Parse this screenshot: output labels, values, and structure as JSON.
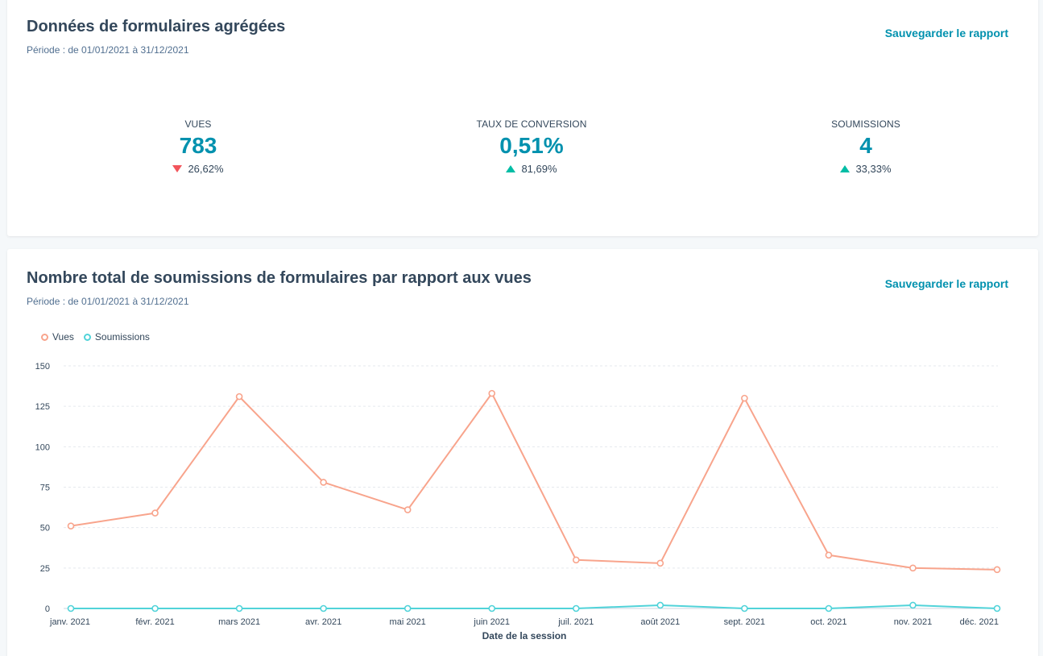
{
  "summary": {
    "title": "Données de formulaires agrégées",
    "period": "Période : de 01/01/2021 à 31/12/2021",
    "save_label": "Sauvegarder le rapport",
    "kpis": [
      {
        "label": "VUES",
        "value": "783",
        "change": "26,62%",
        "direction": "down"
      },
      {
        "label": "TAUX DE CONVERSION",
        "value": "0,51%",
        "change": "81,69%",
        "direction": "up"
      },
      {
        "label": "SOUMISSIONS",
        "value": "4",
        "change": "33,33%",
        "direction": "up"
      }
    ]
  },
  "chart_card": {
    "title": "Nombre total de soumissions de formulaires par rapport aux vues",
    "period": "Période : de 01/01/2021 à 31/12/2021",
    "save_label": "Sauvegarder le rapport"
  },
  "colors": {
    "accent": "#0091ae",
    "down": "#f2545b",
    "up": "#00bda5",
    "vues": "#f8a48c",
    "soumissions": "#51d3d9"
  },
  "chart_data": {
    "type": "line",
    "categories": [
      "janv. 2021",
      "févr. 2021",
      "mars 2021",
      "avr. 2021",
      "mai 2021",
      "juin 2021",
      "juil. 2021",
      "août 2021",
      "sept. 2021",
      "oct. 2021",
      "nov. 2021",
      "déc. 2021"
    ],
    "series": [
      {
        "name": "Vues",
        "values": [
          51,
          59,
          131,
          78,
          61,
          133,
          30,
          28,
          130,
          33,
          25,
          24
        ]
      },
      {
        "name": "Soumissions",
        "values": [
          0,
          0,
          0,
          0,
          0,
          0,
          0,
          2,
          0,
          0,
          2,
          0
        ]
      }
    ],
    "xlabel": "Date de la session",
    "ylabel": "",
    "yticks": [
      "0",
      "25",
      "50",
      "75",
      "100",
      "125",
      "150"
    ],
    "ylim": [
      0,
      150
    ],
    "grid": true,
    "legend": "top-left"
  }
}
